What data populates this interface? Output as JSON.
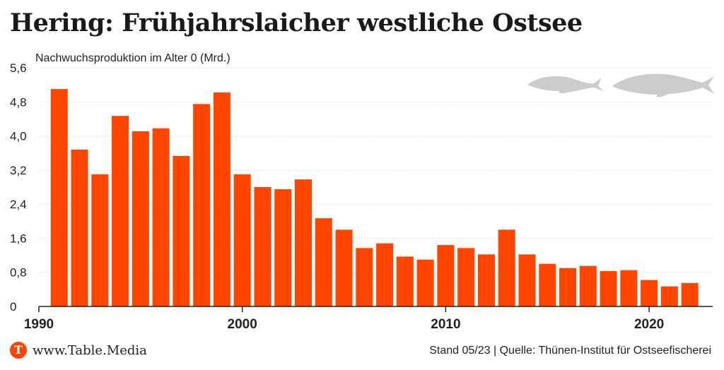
{
  "title": "Hering: Frühjahrslaicher westliche Ostsee",
  "chart_data": {
    "type": "bar",
    "title": "Hering: Frühjahrslaicher westliche Ostsee",
    "ylabel": "Nachwuchsproduktion im Alter 0 (Mrd.)",
    "xlabel": "",
    "ylim": [
      0,
      5.6
    ],
    "yticks": [
      "0",
      "0,8",
      "1,6",
      "2,4",
      "3,2",
      "4,0",
      "4,8",
      "5,6"
    ],
    "ytick_values": [
      0,
      0.8,
      1.6,
      2.4,
      3.2,
      4.0,
      4.8,
      5.6
    ],
    "xticks": [
      "1990",
      "2000",
      "2010",
      "2020"
    ],
    "xtick_values": [
      1990,
      2000,
      2010,
      2020
    ],
    "grid": true,
    "bar_color": "#ff4500",
    "categories": [
      1991,
      1992,
      1993,
      1994,
      1995,
      1996,
      1997,
      1998,
      1999,
      2000,
      2001,
      2002,
      2003,
      2004,
      2005,
      2006,
      2007,
      2008,
      2009,
      2010,
      2011,
      2012,
      2013,
      2014,
      2015,
      2016,
      2017,
      2018,
      2019,
      2020,
      2021,
      2022
    ],
    "values": [
      5.1,
      3.68,
      3.1,
      4.47,
      4.11,
      4.18,
      3.53,
      4.75,
      5.02,
      3.1,
      2.8,
      2.75,
      2.98,
      2.07,
      1.8,
      1.37,
      1.48,
      1.17,
      1.1,
      1.44,
      1.37,
      1.22,
      1.8,
      1.22,
      1.0,
      0.9,
      0.95,
      0.83,
      0.85,
      0.62,
      0.47,
      0.55
    ]
  },
  "decoration": {
    "fish_icon_color": "#cccccc"
  },
  "footer": {
    "logo_letter": "T",
    "brand": "www.Table.Media",
    "source": "Stand 05/23 | Quelle: Thünen-Institut für Ostseefischerei"
  }
}
